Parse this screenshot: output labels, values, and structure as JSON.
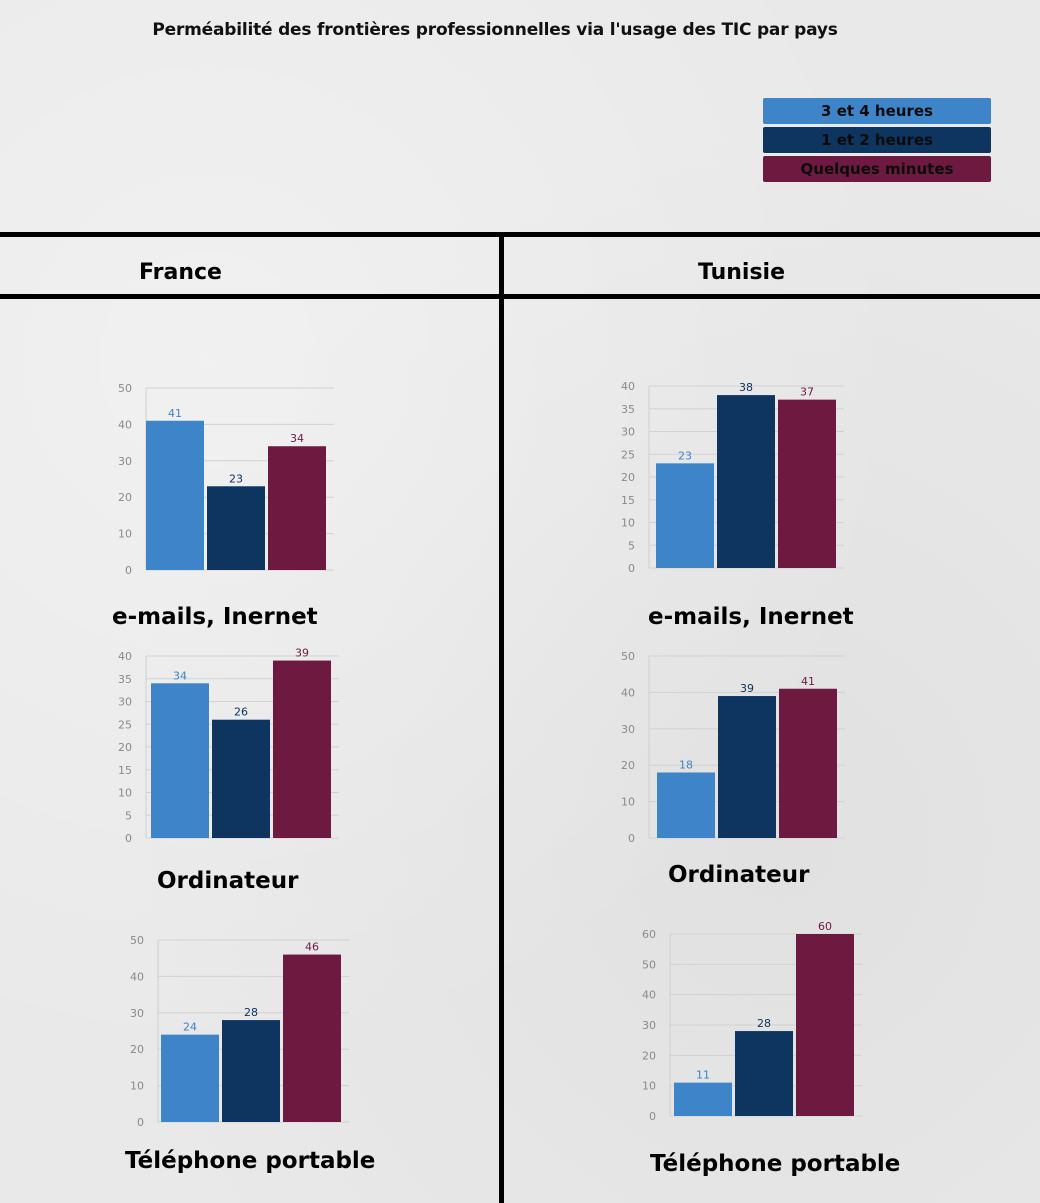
{
  "title": "Perméabilité des frontières professionnelles via l'usage des TIC par pays",
  "legend": [
    {
      "label": "3 et 4 heures",
      "color": "#3d84c9"
    },
    {
      "label": "1 et 2 heures",
      "color": "#0e3560"
    },
    {
      "label": "Quelques minutes",
      "color": "#6e1a40"
    }
  ],
  "columns": [
    "France",
    "Tunisie"
  ],
  "chart_data": [
    {
      "type": "bar",
      "country": "France",
      "title": "e-mails, Inernet",
      "categories": [
        "3 et 4 heures",
        "1 et 2 heures",
        "Quelques minutes"
      ],
      "values": [
        41,
        23,
        34
      ],
      "ylim": [
        0,
        50
      ],
      "yticks": [
        0,
        10,
        20,
        30,
        40,
        50
      ]
    },
    {
      "type": "bar",
      "country": "Tunisie",
      "title": "e-mails, Inernet",
      "categories": [
        "3 et 4 heures",
        "1 et 2 heures",
        "Quelques minutes"
      ],
      "values": [
        23,
        38,
        37
      ],
      "ylim": [
        0,
        40
      ],
      "yticks": [
        0,
        5,
        10,
        15,
        20,
        25,
        30,
        35,
        40
      ]
    },
    {
      "type": "bar",
      "country": "France",
      "title": "Ordinateur",
      "categories": [
        "3 et 4 heures",
        "1 et 2 heures",
        "Quelques minutes"
      ],
      "values": [
        34,
        26,
        39
      ],
      "ylim": [
        0,
        40
      ],
      "yticks": [
        0,
        5,
        10,
        15,
        20,
        25,
        30,
        35,
        40
      ]
    },
    {
      "type": "bar",
      "country": "Tunisie",
      "title": "Ordinateur",
      "categories": [
        "3 et 4 heures",
        "1 et 2 heures",
        "Quelques minutes"
      ],
      "values": [
        18,
        39,
        41
      ],
      "ylim": [
        0,
        50
      ],
      "yticks": [
        0,
        10,
        20,
        30,
        40,
        50
      ]
    },
    {
      "type": "bar",
      "country": "France",
      "title": "Téléphone portable",
      "categories": [
        "3 et 4 heures",
        "1 et 2 heures",
        "Quelques minutes"
      ],
      "values": [
        24,
        28,
        46
      ],
      "ylim": [
        0,
        50
      ],
      "yticks": [
        0,
        10,
        20,
        30,
        40,
        50
      ]
    },
    {
      "type": "bar",
      "country": "Tunisie",
      "title": "Téléphone portable",
      "categories": [
        "3 et 4 heures",
        "1 et 2 heures",
        "Quelques minutes"
      ],
      "values": [
        11,
        28,
        60
      ],
      "ylim": [
        0,
        60
      ],
      "yticks": [
        0,
        10,
        20,
        30,
        40,
        50,
        60
      ]
    }
  ]
}
